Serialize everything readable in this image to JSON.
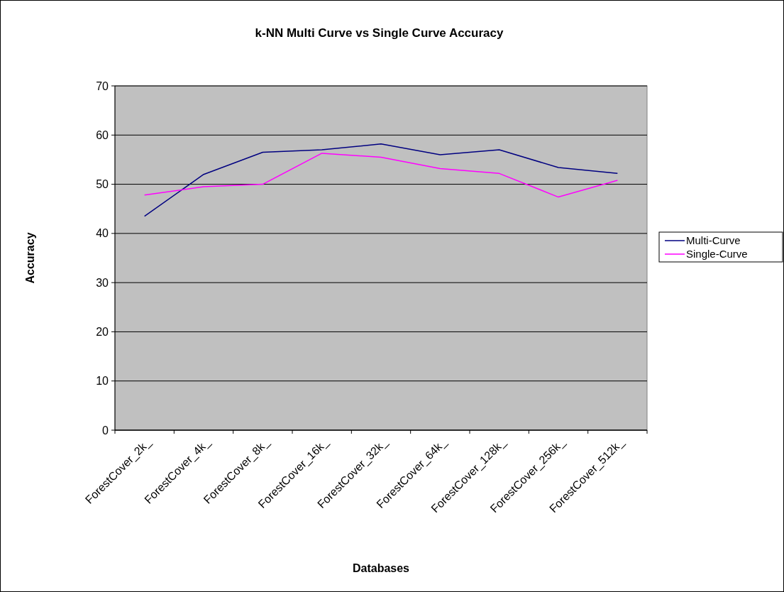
{
  "chart_data": {
    "type": "line",
    "title": "k-NN Multi Curve vs Single Curve Accuracy",
    "xlabel": "Databases",
    "ylabel": "Accuracy",
    "categories": [
      "ForestCover_2k_",
      "ForestCover_4k_",
      "ForestCover_8k_",
      "ForestCover_16k_",
      "ForestCover_32k_",
      "ForestCover_64k_",
      "ForestCover_128k_",
      "ForestCover_256k_",
      "ForestCover_512k_"
    ],
    "series": [
      {
        "name": "Multi-Curve",
        "color": "#000080",
        "values": [
          43.5,
          52,
          56.5,
          57,
          58.2,
          56,
          57,
          53.4,
          52.2
        ]
      },
      {
        "name": "Single-Curve",
        "color": "#ff00ff",
        "values": [
          47.8,
          49.5,
          50,
          56.3,
          55.5,
          53.2,
          52.2,
          47.4,
          50.8
        ]
      }
    ],
    "ylim": [
      0,
      70
    ],
    "yticks": [
      0,
      10,
      20,
      30,
      40,
      50,
      60,
      70
    ],
    "grid": "y",
    "legend": "right",
    "marker": "none",
    "line_style": "solid"
  }
}
